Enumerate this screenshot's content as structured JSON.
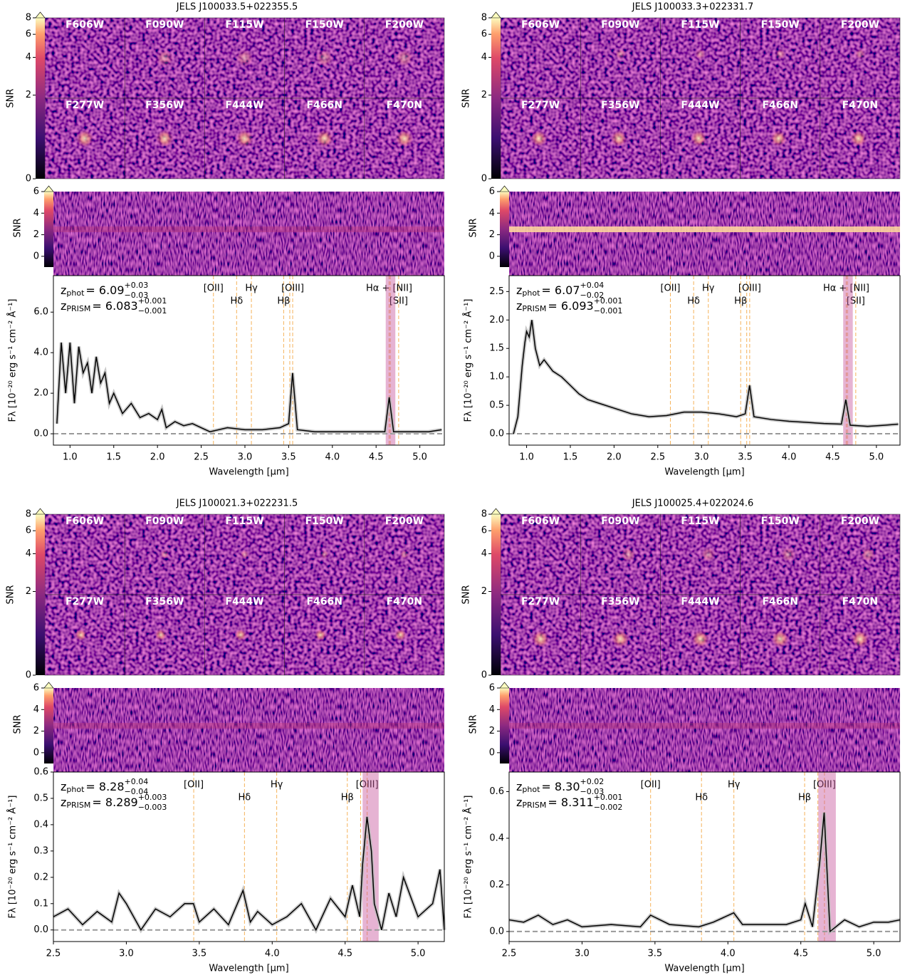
{
  "chart_data": [
    {
      "type": "line",
      "title": "JELS J100033.5+022355.5",
      "filters": [
        "F606W",
        "F090W",
        "F115W",
        "F150W",
        "F200W",
        "F277W",
        "F356W",
        "F444W",
        "F466N",
        "F470N"
      ],
      "image_cbar": {
        "label": "SNR",
        "lim": [
          0,
          8
        ],
        "ticks": [
          0,
          2,
          4,
          6,
          8
        ],
        "scale": "asinh"
      },
      "spec2d_cbar": {
        "label": "SNR",
        "lim": [
          -1,
          6
        ],
        "ticks": [
          0,
          2,
          4,
          6
        ]
      },
      "xlabel": "Wavelength [μm]",
      "ylabel": "Fλ [10⁻²⁰ erg s⁻¹ cm⁻² Å⁻¹]",
      "xlim": [
        0.81,
        5.28
      ],
      "ylim": [
        -0.56,
        7.8
      ],
      "xticks": [
        {
          "value": 1,
          "label": "1.0"
        },
        {
          "value": 1.5,
          "label": "1.5"
        },
        {
          "value": 2,
          "label": "2.0"
        },
        {
          "value": 2.5,
          "label": "2.5"
        },
        {
          "value": 3,
          "label": "3.0"
        },
        {
          "value": 3.5,
          "label": "3.5"
        },
        {
          "value": 4,
          "label": "4.0"
        },
        {
          "value": 4.5,
          "label": "4.5"
        },
        {
          "value": 5,
          "label": "5.0"
        }
      ],
      "yticks": [
        {
          "value": 0,
          "label": "0.0"
        },
        {
          "value": 2,
          "label": "2.0"
        },
        {
          "value": 4,
          "label": "4.0"
        },
        {
          "value": 6,
          "label": "6.0"
        }
      ],
      "redshifts": [
        {
          "symbol": "z",
          "subscript": "phot",
          "value": "= 6.09",
          "upper": "+0.03",
          "lower": "−0.03"
        },
        {
          "symbol": "z",
          "subscript": "PRISM",
          "value": "= 6.083",
          "upper": "+0.001",
          "lower": "−0.001"
        }
      ],
      "lines": [
        {
          "label": "[OII]",
          "x": 2.64
        },
        {
          "label": "Hδ",
          "x": 2.905
        },
        {
          "label": "Hγ",
          "x": 3.074
        },
        {
          "label": "Hβ",
          "x": 3.443
        },
        {
          "x": 3.513
        },
        {
          "label": "[OIII]",
          "x": 3.546
        },
        {
          "label": "Hα + [NII]",
          "x": 4.649
        },
        {
          "x": 4.663
        },
        {
          "label": "[SII]",
          "x": 4.758
        }
      ],
      "band": [
        4.61,
        4.72
      ],
      "x": [
        0.85,
        0.9,
        0.95,
        1.0,
        1.05,
        1.1,
        1.15,
        1.2,
        1.25,
        1.3,
        1.35,
        1.4,
        1.45,
        1.5,
        1.6,
        1.7,
        1.8,
        1.9,
        2.0,
        2.05,
        2.1,
        2.2,
        2.3,
        2.4,
        2.5,
        2.6,
        2.8,
        3.0,
        3.2,
        3.4,
        3.5,
        3.545,
        3.6,
        3.8,
        4.0,
        4.2,
        4.4,
        4.6,
        4.65,
        4.7,
        4.9,
        5.1,
        5.25
      ],
      "series": [
        {
          "color": "#000000",
          "values": [
            0.5,
            4.5,
            2,
            4.5,
            1.5,
            4.3,
            3,
            3.5,
            2,
            3.8,
            2.5,
            3,
            1.5,
            2,
            1,
            1.5,
            0.8,
            1,
            0.7,
            1.2,
            0.3,
            0.6,
            0.4,
            0.5,
            0.3,
            0.1,
            0.3,
            0.2,
            0.2,
            0.3,
            0.5,
            3,
            0.2,
            0.1,
            0.1,
            0.1,
            0.1,
            0.1,
            1.8,
            0.1,
            0.1,
            0.1,
            0.2
          ]
        }
      ]
    },
    {
      "type": "line",
      "title": "JELS J100033.3+022331.7",
      "filters": [
        "F606W",
        "F090W",
        "F115W",
        "F150W",
        "F200W",
        "F277W",
        "F356W",
        "F444W",
        "F466N",
        "F470N"
      ],
      "image_cbar": {
        "label": "SNR",
        "lim": [
          0,
          8
        ],
        "ticks": [
          0,
          2,
          4,
          6,
          8
        ],
        "scale": "asinh"
      },
      "spec2d_cbar": {
        "label": "SNR",
        "lim": [
          -1,
          6
        ],
        "ticks": [
          0,
          2,
          4,
          6
        ]
      },
      "xlabel": "Wavelength [μm]",
      "ylabel": "Fλ [10⁻²⁰ erg s⁻¹ cm⁻² Å⁻¹]",
      "xlim": [
        0.8,
        5.27
      ],
      "ylim": [
        -0.2,
        2.78
      ],
      "xticks": [
        {
          "value": 1,
          "label": "1.0"
        },
        {
          "value": 1.5,
          "label": "1.5"
        },
        {
          "value": 2,
          "label": "2.0"
        },
        {
          "value": 2.5,
          "label": "2.5"
        },
        {
          "value": 3,
          "label": "3.0"
        },
        {
          "value": 3.5,
          "label": "3.5"
        },
        {
          "value": 4,
          "label": "4.0"
        },
        {
          "value": 4.5,
          "label": "4.5"
        },
        {
          "value": 5,
          "label": "5.0"
        }
      ],
      "yticks": [
        {
          "value": 0,
          "label": "0.0"
        },
        {
          "value": 0.5,
          "label": "0.5"
        },
        {
          "value": 1,
          "label": "1.0"
        },
        {
          "value": 1.5,
          "label": "1.5"
        },
        {
          "value": 2,
          "label": "2.0"
        },
        {
          "value": 2.5,
          "label": "2.5"
        }
      ],
      "redshifts": [
        {
          "symbol": "z",
          "subscript": "phot",
          "value": "= 6.07",
          "upper": "+0.04",
          "lower": "−0.02"
        },
        {
          "symbol": "z",
          "subscript": "PRISM",
          "value": "= 6.093",
          "upper": "+0.001",
          "lower": "−0.001"
        }
      ],
      "lines": [
        {
          "label": "[OII]",
          "x": 2.644
        },
        {
          "label": "Hδ",
          "x": 2.91
        },
        {
          "label": "Hγ",
          "x": 3.078
        },
        {
          "label": "Hβ",
          "x": 3.448
        },
        {
          "x": 3.517
        },
        {
          "label": "[OIII]",
          "x": 3.551
        },
        {
          "label": "Hα + [NII]",
          "x": 4.655
        },
        {
          "x": 4.67
        },
        {
          "label": "[SII]",
          "x": 4.764
        }
      ],
      "band": [
        4.62,
        4.73
      ],
      "x": [
        0.85,
        0.9,
        0.95,
        0.98,
        1.0,
        1.03,
        1.06,
        1.1,
        1.15,
        1.2,
        1.25,
        1.3,
        1.4,
        1.5,
        1.6,
        1.7,
        1.8,
        2.0,
        2.2,
        2.4,
        2.6,
        2.8,
        3.0,
        3.2,
        3.4,
        3.5,
        3.55,
        3.6,
        3.8,
        4.0,
        4.2,
        4.4,
        4.6,
        4.65,
        4.7,
        4.9,
        5.1,
        5.25
      ],
      "series": [
        {
          "color": "#000000",
          "values": [
            0,
            0.3,
            1.2,
            1.6,
            1.8,
            1.7,
            2.0,
            1.5,
            1.2,
            1.3,
            1.2,
            1.1,
            1.0,
            0.85,
            0.7,
            0.6,
            0.55,
            0.45,
            0.35,
            0.3,
            0.32,
            0.38,
            0.38,
            0.35,
            0.3,
            0.35,
            0.85,
            0.3,
            0.25,
            0.22,
            0.2,
            0.18,
            0.17,
            0.6,
            0.15,
            0.13,
            0.15,
            0.17
          ]
        }
      ]
    },
    {
      "type": "line",
      "title": "JELS J100021.3+022231.5",
      "filters": [
        "F606W",
        "F090W",
        "F115W",
        "F150W",
        "F200W",
        "F277W",
        "F356W",
        "F444W",
        "F466N",
        "F470N"
      ],
      "image_cbar": {
        "label": "SNR",
        "lim": [
          0,
          8
        ],
        "ticks": [
          0,
          2,
          4,
          6,
          8
        ],
        "scale": "asinh"
      },
      "spec2d_cbar": {
        "label": "SNR",
        "lim": [
          -1,
          6
        ],
        "ticks": [
          0,
          2,
          4,
          6
        ]
      },
      "xlabel": "Wavelength [μm]",
      "ylabel": "Fλ [10⁻²⁰ erg s⁻¹ cm⁻² Å⁻¹]",
      "xlim": [
        2.5,
        5.18
      ],
      "ylim": [
        -0.044,
        0.6
      ],
      "xticks": [
        {
          "value": 2.5,
          "label": "2.5"
        },
        {
          "value": 3,
          "label": "3.0"
        },
        {
          "value": 3.5,
          "label": "3.5"
        },
        {
          "value": 4,
          "label": "4.0"
        },
        {
          "value": 4.5,
          "label": "4.5"
        },
        {
          "value": 5,
          "label": "5.0"
        }
      ],
      "yticks": [
        {
          "value": 0,
          "label": "0.0"
        },
        0.1,
        0.2,
        0.3,
        0.4,
        0.5,
        0.6
      ],
      "redshifts": [
        {
          "symbol": "z",
          "subscript": "phot",
          "value": "= 8.28",
          "upper": "+0.04",
          "lower": "−0.04"
        },
        {
          "symbol": "z",
          "subscript": "PRISM",
          "value": "= 8.289",
          "upper": "+0.003",
          "lower": "−0.003"
        }
      ],
      "lines": [
        {
          "label": "[OII]",
          "x": 3.462
        },
        {
          "label": "Hδ",
          "x": 3.81
        },
        {
          "label": "Hγ",
          "x": 4.031
        },
        {
          "label": "Hβ",
          "x": 4.515
        },
        {
          "x": 4.606
        },
        {
          "label": "[OIII]",
          "x": 4.651
        }
      ],
      "band": [
        4.62,
        4.73
      ],
      "x": [
        2.5,
        2.6,
        2.7,
        2.8,
        2.9,
        2.95,
        3.0,
        3.1,
        3.2,
        3.3,
        3.4,
        3.46,
        3.5,
        3.6,
        3.7,
        3.8,
        3.85,
        3.9,
        4.0,
        4.1,
        4.2,
        4.3,
        4.4,
        4.5,
        4.55,
        4.6,
        4.62,
        4.65,
        4.68,
        4.7,
        4.75,
        4.8,
        4.85,
        4.9,
        5.0,
        5.1,
        5.15,
        5.18
      ],
      "series": [
        {
          "color": "#000000",
          "values": [
            0.05,
            0.08,
            0.02,
            0.07,
            0.03,
            0.14,
            0.1,
            0,
            0.08,
            0.05,
            0.1,
            0.1,
            0.03,
            0.08,
            0.02,
            0.15,
            0.03,
            0.07,
            0.02,
            0.05,
            0.1,
            0,
            0.12,
            0.05,
            0.17,
            0.05,
            0.25,
            0.43,
            0.3,
            0.1,
            0,
            0.14,
            0.05,
            0.2,
            0.05,
            0.1,
            0.23,
            0
          ]
        }
      ]
    },
    {
      "type": "line",
      "title": "JELS J100025.4+022024.6",
      "filters": [
        "F606W",
        "F090W",
        "F115W",
        "F150W",
        "F200W",
        "F277W",
        "F356W",
        "F444W",
        "F466N",
        "F470N"
      ],
      "image_cbar": {
        "label": "SNR",
        "lim": [
          0,
          8
        ],
        "ticks": [
          0,
          2,
          4,
          6,
          8
        ],
        "scale": "asinh"
      },
      "spec2d_cbar": {
        "label": "SNR",
        "lim": [
          -1,
          6
        ],
        "ticks": [
          0,
          2,
          4,
          6
        ]
      },
      "xlabel": "Wavelength [μm]",
      "ylabel": "Fλ [10⁻²⁰ erg s⁻¹ cm⁻² Å⁻¹]",
      "xlim": [
        2.5,
        5.18
      ],
      "ylim": [
        -0.043,
        0.684
      ],
      "xticks": [
        {
          "value": 2.5,
          "label": "2.5"
        },
        {
          "value": 3,
          "label": "3.0"
        },
        {
          "value": 3.5,
          "label": "3.5"
        },
        {
          "value": 4,
          "label": "4.0"
        },
        {
          "value": 4.5,
          "label": "4.5"
        },
        {
          "value": 5,
          "label": "5.0"
        }
      ],
      "yticks": [
        {
          "value": 0,
          "label": "0.0"
        },
        0.2,
        0.4,
        0.6
      ],
      "redshifts": [
        {
          "symbol": "z",
          "subscript": "phot",
          "value": "= 8.30",
          "upper": "+0.02",
          "lower": "−0.03"
        },
        {
          "symbol": "z",
          "subscript": "PRISM",
          "value": "= 8.311",
          "upper": "+0.001",
          "lower": "−0.002"
        }
      ],
      "lines": [
        {
          "label": "[OII]",
          "x": 3.47
        },
        {
          "label": "Hδ",
          "x": 3.819
        },
        {
          "label": "Hγ",
          "x": 4.041
        },
        {
          "label": "Hβ",
          "x": 4.526
        },
        {
          "x": 4.617
        },
        {
          "label": "[OIII]",
          "x": 4.662
        }
      ],
      "band": [
        4.62,
        4.74
      ],
      "x": [
        2.5,
        2.6,
        2.7,
        2.8,
        2.9,
        3.0,
        3.2,
        3.4,
        3.47,
        3.6,
        3.8,
        3.9,
        4.04,
        4.1,
        4.3,
        4.4,
        4.5,
        4.53,
        4.58,
        4.63,
        4.66,
        4.7,
        4.8,
        4.9,
        5.0,
        5.1,
        5.18
      ],
      "series": [
        {
          "color": "#000000",
          "values": [
            0.05,
            0.04,
            0.07,
            0.03,
            0.05,
            0.02,
            0.03,
            0.02,
            0.07,
            0.03,
            0.02,
            0.04,
            0.08,
            0.03,
            0.03,
            0.03,
            0.05,
            0.12,
            0.02,
            0.3,
            0.51,
            0,
            0.05,
            0.02,
            0.04,
            0.04,
            0.05
          ]
        }
      ]
    }
  ]
}
